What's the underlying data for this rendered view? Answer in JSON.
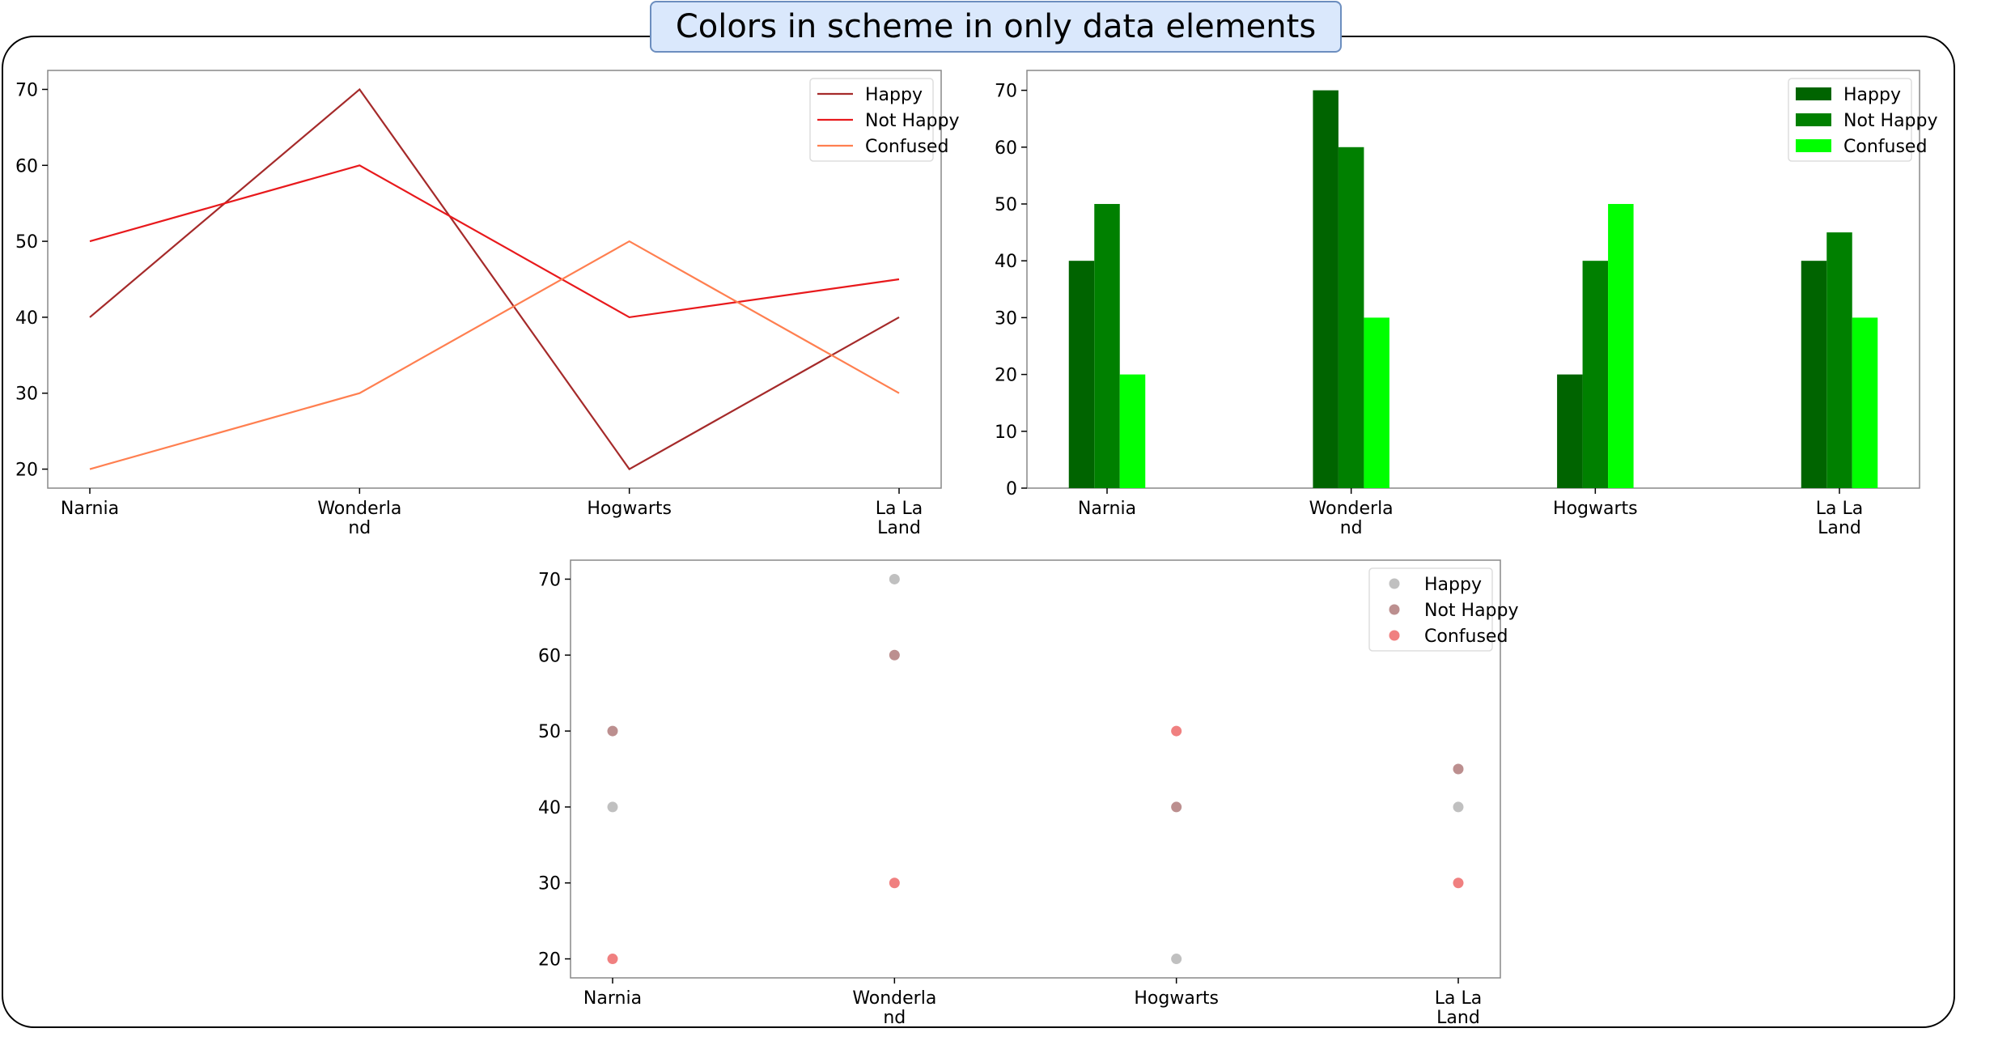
{
  "title": "Colors in scheme in only data elements",
  "chart_data": [
    {
      "type": "line",
      "categories": [
        "Narnia",
        "Wonderland",
        "Hogwarts",
        "La La Land"
      ],
      "series": [
        {
          "name": "Happy",
          "values": [
            40,
            70,
            20,
            40
          ],
          "color": "#a52a2a"
        },
        {
          "name": "Not Happy",
          "values": [
            50,
            60,
            40,
            45
          ],
          "color": "#e8191c"
        },
        {
          "name": "Confused",
          "values": [
            20,
            30,
            50,
            30
          ],
          "color": "#ff7f50"
        }
      ],
      "ylim": [
        17.5,
        72.5
      ],
      "yticks": [
        20,
        30,
        40,
        50,
        60,
        70
      ],
      "legend": "top-right"
    },
    {
      "type": "bar",
      "categories": [
        "Narnia",
        "Wonderland",
        "Hogwarts",
        "La La Land"
      ],
      "series": [
        {
          "name": "Happy",
          "values": [
            40,
            70,
            20,
            40
          ],
          "color": "#006400"
        },
        {
          "name": "Not Happy",
          "values": [
            50,
            60,
            40,
            45
          ],
          "color": "#008000"
        },
        {
          "name": "Confused",
          "values": [
            20,
            30,
            50,
            30
          ],
          "color": "#00ff00"
        }
      ],
      "ylim": [
        0,
        73.5
      ],
      "yticks": [
        0,
        10,
        20,
        30,
        40,
        50,
        60,
        70
      ],
      "legend": "top-right"
    },
    {
      "type": "scatter",
      "categories": [
        "Narnia",
        "Wonderland",
        "Hogwarts",
        "La La Land"
      ],
      "series": [
        {
          "name": "Happy",
          "values": [
            40,
            70,
            20,
            40
          ],
          "color": "#c0c0c0"
        },
        {
          "name": "Not Happy",
          "values": [
            50,
            60,
            40,
            45
          ],
          "color": "#bc8f8f"
        },
        {
          "name": "Confused",
          "values": [
            20,
            30,
            50,
            30
          ],
          "color": "#f08080"
        }
      ],
      "ylim": [
        17.5,
        72.5
      ],
      "yticks": [
        20,
        30,
        40,
        50,
        60,
        70
      ],
      "legend": "top-right"
    }
  ]
}
